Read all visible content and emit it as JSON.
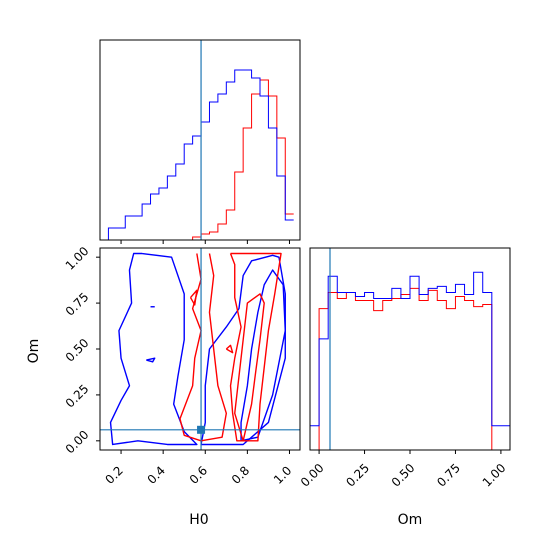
{
  "chart_data": {
    "type": "corner",
    "parameters": [
      "H0",
      "Om"
    ],
    "truths": {
      "H0": 0.58,
      "Om": 0.06
    },
    "colors": {
      "red": "#ff0000",
      "blue": "#0000ff",
      "truth": "#1f77b4",
      "frame": "#000000"
    },
    "panels": [
      {
        "id": "H0-marginal",
        "type": "histogram",
        "parameter": "H0",
        "xlim": [
          0.1,
          1.05
        ],
        "ylim": [
          0,
          10
        ],
        "bin_edges": [
          0.1,
          0.14,
          0.18,
          0.22,
          0.26,
          0.3,
          0.34,
          0.38,
          0.42,
          0.46,
          0.5,
          0.54,
          0.58,
          0.62,
          0.66,
          0.7,
          0.74,
          0.78,
          0.82,
          0.86,
          0.9,
          0.94,
          0.98,
          1.02
        ],
        "series": [
          {
            "name": "",
            "color": "red",
            "counts": [
              0,
              0,
              0,
              0,
              0,
              0,
              0,
              0,
              0,
              0,
              0,
              0.15,
              0.3,
              0.4,
              0.8,
              1.5,
              3.4,
              5.6,
              7.3,
              8.0,
              7.2,
              5.1,
              1.3
            ]
          },
          {
            "name": "",
            "color": "blue",
            "counts": [
              0,
              0.6,
              0.6,
              1.2,
              1.2,
              1.8,
              2.3,
              2.6,
              3.2,
              3.8,
              4.8,
              5.2,
              5.9,
              6.9,
              7.3,
              7.9,
              8.5,
              8.5,
              8.1,
              7.2,
              5.6,
              3.2,
              1.0
            ]
          }
        ]
      },
      {
        "id": "Om-marginal",
        "type": "histogram",
        "parameter": "Om",
        "xlim": [
          -0.05,
          1.05
        ],
        "ylim": [
          0,
          10
        ],
        "bin_edges": [
          -0.05,
          0.0,
          0.05,
          0.1,
          0.15,
          0.2,
          0.25,
          0.3,
          0.35,
          0.4,
          0.45,
          0.5,
          0.55,
          0.6,
          0.65,
          0.7,
          0.75,
          0.8,
          0.85,
          0.9,
          0.95,
          1.0,
          1.05
        ],
        "series": [
          {
            "name": "",
            "color": "red",
            "counts": [
              0,
              7.0,
              7.8,
              7.5,
              7.8,
              7.4,
              7.4,
              6.9,
              7.4,
              7.5,
              7.7,
              8.0,
              7.4,
              7.9,
              7.4,
              7.0,
              7.6,
              7.4,
              7.1,
              7.2,
              0,
              0
            ]
          },
          {
            "name": "",
            "color": "blue",
            "counts": [
              1.2,
              5.5,
              8.6,
              7.8,
              7.8,
              7.6,
              7.8,
              7.5,
              7.5,
              8.0,
              7.5,
              8.6,
              7.7,
              8.0,
              8.1,
              7.8,
              8.2,
              7.7,
              8.8,
              7.8,
              1.2,
              1.2
            ]
          }
        ]
      },
      {
        "id": "H0-Om-2d",
        "type": "contour",
        "x": "H0",
        "y": "Om",
        "xlim": [
          0.1,
          1.05
        ],
        "ylim": [
          -0.05,
          1.05
        ],
        "contours": [
          {
            "name": "",
            "color": "blue",
            "level": "outer",
            "points": [
              [
                0.3,
                1.02
              ],
              [
                0.44,
                1.0
              ],
              [
                0.5,
                0.8
              ],
              [
                0.5,
                0.55
              ],
              [
                0.47,
                0.35
              ],
              [
                0.45,
                0.2
              ],
              [
                0.5,
                0.05
              ],
              [
                0.56,
                -0.02
              ],
              [
                0.42,
                -0.02
              ],
              [
                0.28,
                0.0
              ],
              [
                0.16,
                -0.02
              ],
              [
                0.15,
                0.1
              ],
              [
                0.2,
                0.22
              ],
              [
                0.24,
                0.3
              ],
              [
                0.2,
                0.45
              ],
              [
                0.19,
                0.6
              ],
              [
                0.25,
                0.75
              ],
              [
                0.24,
                0.93
              ],
              [
                0.26,
                1.02
              ],
              [
                0.3,
                1.02
              ]
            ]
          },
          {
            "name": "",
            "color": "blue",
            "level": "outer-right",
            "points": [
              [
                0.58,
                -0.02
              ],
              [
                0.78,
                -0.02
              ],
              [
                0.9,
                0.1
              ],
              [
                0.98,
                0.45
              ],
              [
                0.98,
                0.8
              ],
              [
                0.95,
                1.0
              ],
              [
                0.92,
                1.01
              ],
              [
                0.82,
                0.98
              ],
              [
                0.78,
                0.9
              ],
              [
                0.76,
                0.72
              ],
              [
                0.7,
                0.62
              ],
              [
                0.62,
                0.5
              ],
              [
                0.6,
                0.3
              ],
              [
                0.6,
                0.1
              ],
              [
                0.58,
                -0.02
              ]
            ]
          },
          {
            "name": "",
            "color": "blue",
            "level": "inner",
            "points": [
              [
                0.77,
                0.0
              ],
              [
                0.85,
                0.02
              ],
              [
                0.92,
                0.25
              ],
              [
                0.98,
                0.6
              ],
              [
                0.97,
                0.85
              ],
              [
                0.92,
                0.93
              ],
              [
                0.88,
                0.85
              ],
              [
                0.85,
                0.7
              ],
              [
                0.82,
                0.5
              ],
              [
                0.8,
                0.3
              ],
              [
                0.77,
                0.1
              ],
              [
                0.77,
                0.0
              ]
            ]
          },
          {
            "name": "",
            "color": "blue",
            "level": "island",
            "points": [
              [
                0.32,
                0.44
              ],
              [
                0.36,
                0.45
              ],
              [
                0.35,
                0.43
              ],
              [
                0.32,
                0.44
              ]
            ]
          },
          {
            "name": "",
            "color": "blue",
            "level": "island",
            "points": [
              [
                0.34,
                0.73
              ],
              [
                0.36,
                0.73
              ]
            ]
          },
          {
            "name": "",
            "color": "red",
            "level": "outer",
            "points": [
              [
                0.72,
                1.02
              ],
              [
                0.74,
                0.96
              ],
              [
                0.74,
                0.78
              ],
              [
                0.77,
                0.62
              ],
              [
                0.74,
                0.45
              ],
              [
                0.72,
                0.3
              ],
              [
                0.73,
                0.15
              ],
              [
                0.75,
                0.0
              ],
              [
                0.85,
                0.0
              ],
              [
                0.86,
                0.2
              ],
              [
                0.88,
                0.4
              ],
              [
                0.9,
                0.6
              ],
              [
                0.93,
                0.8
              ],
              [
                0.96,
                1.02
              ],
              [
                0.72,
                1.02
              ]
            ]
          },
          {
            "name": "",
            "color": "red",
            "level": "outer-left",
            "points": [
              [
                0.56,
                1.02
              ],
              [
                0.58,
                0.88
              ],
              [
                0.54,
                0.72
              ],
              [
                0.58,
                0.6
              ],
              [
                0.55,
                0.45
              ],
              [
                0.54,
                0.3
              ],
              [
                0.48,
                0.12
              ],
              [
                0.5,
                0.03
              ],
              [
                0.58,
                0.0
              ],
              [
                0.68,
                0.02
              ],
              [
                0.7,
                0.15
              ],
              [
                0.66,
                0.3
              ],
              [
                0.64,
                0.5
              ],
              [
                0.62,
                0.7
              ],
              [
                0.64,
                0.9
              ],
              [
                0.62,
                1.02
              ]
            ]
          },
          {
            "name": "",
            "color": "red",
            "level": "inner",
            "points": [
              [
                0.78,
                0.0
              ],
              [
                0.82,
                0.2
              ],
              [
                0.84,
                0.38
              ],
              [
                0.86,
                0.55
              ],
              [
                0.88,
                0.75
              ],
              [
                0.86,
                0.8
              ],
              [
                0.8,
                0.75
              ],
              [
                0.78,
                0.55
              ],
              [
                0.76,
                0.35
              ],
              [
                0.74,
                0.15
              ],
              [
                0.78,
                0.0
              ]
            ]
          },
          {
            "name": "",
            "color": "red",
            "level": "island",
            "points": [
              [
                0.53,
                0.78
              ],
              [
                0.56,
                0.82
              ],
              [
                0.55,
                0.74
              ],
              [
                0.53,
                0.78
              ]
            ]
          },
          {
            "name": "",
            "color": "red",
            "level": "island",
            "points": [
              [
                0.7,
                0.5
              ],
              [
                0.72,
                0.52
              ],
              [
                0.73,
                0.48
              ],
              [
                0.7,
                0.5
              ]
            ]
          }
        ]
      }
    ],
    "xlabels": [
      "H0",
      "Om"
    ],
    "ylabels": [
      "Om"
    ],
    "ticks": {
      "H0": [
        "0.2",
        "0.4",
        "0.6",
        "0.8",
        "1.0"
      ],
      "H0_values": [
        0.2,
        0.4,
        0.6,
        0.8,
        1.0
      ],
      "Om": [
        "0.00",
        "0.25",
        "0.50",
        "0.75",
        "1.00"
      ],
      "Om_values": [
        0.0,
        0.25,
        0.5,
        0.75,
        1.0
      ]
    }
  }
}
